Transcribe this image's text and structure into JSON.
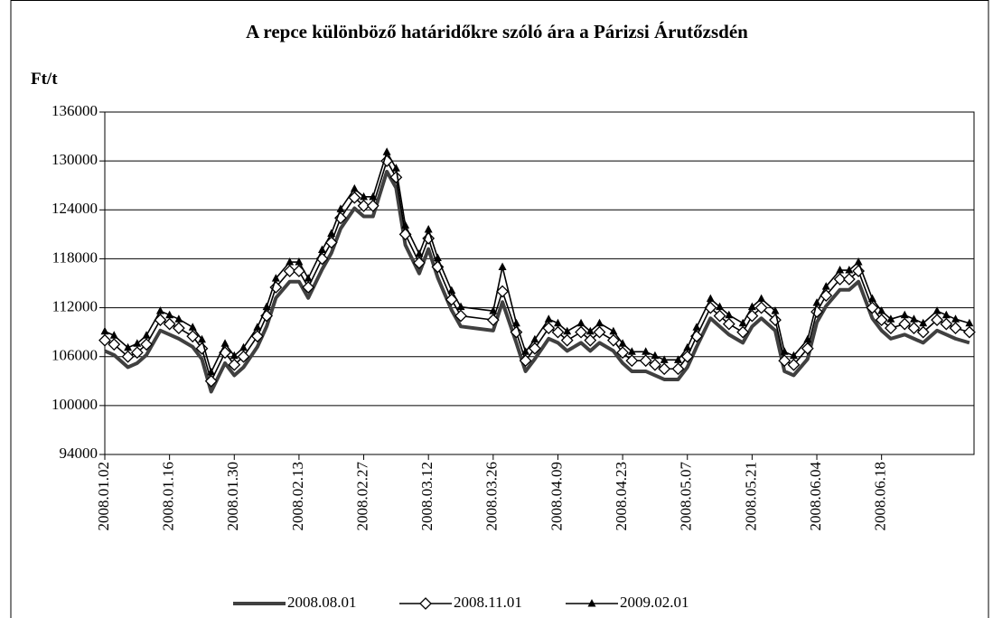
{
  "chart_data": {
    "type": "line",
    "title": "A repce különböző határidőkre szóló ára a Párizsi Árutőzsdén",
    "y_label": "Ft/t",
    "x": [
      "2008.01.02",
      "2008.01.04",
      "2008.01.07",
      "2008.01.09",
      "2008.01.11",
      "2008.01.14",
      "2008.01.16",
      "2008.01.18",
      "2008.01.21",
      "2008.01.23",
      "2008.01.25",
      "2008.01.28",
      "2008.01.30",
      "2008.02.01",
      "2008.02.04",
      "2008.02.06",
      "2008.02.08",
      "2008.02.11",
      "2008.02.13",
      "2008.02.15",
      "2008.02.18",
      "2008.02.20",
      "2008.02.22",
      "2008.02.25",
      "2008.02.27",
      "2008.02.29",
      "2008.03.03",
      "2008.03.05",
      "2008.03.07",
      "2008.03.10",
      "2008.03.12",
      "2008.03.14",
      "2008.03.17",
      "2008.03.19",
      "2008.03.26",
      "2008.03.28",
      "2008.03.31",
      "2008.04.02",
      "2008.04.04",
      "2008.04.07",
      "2008.04.09",
      "2008.04.11",
      "2008.04.14",
      "2008.04.16",
      "2008.04.18",
      "2008.04.21",
      "2008.04.23",
      "2008.04.25",
      "2008.04.28",
      "2008.04.30",
      "2008.05.02",
      "2008.05.05",
      "2008.05.07",
      "2008.05.09",
      "2008.05.12",
      "2008.05.14",
      "2008.05.16",
      "2008.05.19",
      "2008.05.21",
      "2008.05.23",
      "2008.05.26",
      "2008.05.28",
      "2008.05.30",
      "2008.06.02",
      "2008.06.04",
      "2008.06.06",
      "2008.06.09",
      "2008.06.11",
      "2008.06.13",
      "2008.06.16",
      "2008.06.18",
      "2008.06.20",
      "2008.06.23",
      "2008.06.25",
      "2008.06.27",
      "2008.06.30",
      "2008.07.02",
      "2008.07.04",
      "2008.07.07"
    ],
    "series": [
      {
        "name": "2008.08.01",
        "color": "#404040",
        "marker": "none",
        "values": [
          106700,
          106200,
          104700,
          105200,
          106200,
          109200,
          108700,
          108200,
          107200,
          105700,
          101700,
          105200,
          103700,
          104700,
          107200,
          109700,
          113200,
          115200,
          115200,
          113200,
          116700,
          118700,
          121700,
          124200,
          123200,
          123200,
          128700,
          126700,
          119700,
          116200,
          119200,
          115700,
          111700,
          109700,
          109200,
          112700,
          107700,
          104200,
          105700,
          108200,
          107700,
          106700,
          107700,
          106700,
          107700,
          106700,
          105200,
          104200,
          104200,
          103700,
          103200,
          103200,
          104700,
          107200,
          110700,
          109700,
          108700,
          107700,
          109700,
          110700,
          109200,
          104200,
          103700,
          105700,
          110200,
          112200,
          114200,
          114200,
          115200,
          110700,
          109200,
          108200,
          108700,
          108200,
          107700,
          109200,
          108700,
          108200,
          107700
        ]
      },
      {
        "name": "2008.11.01",
        "color": "#000000",
        "marker": "diamond",
        "values": [
          108000,
          107500,
          106000,
          106500,
          107500,
          110500,
          110000,
          109500,
          108500,
          107000,
          103000,
          106500,
          105000,
          106000,
          108500,
          111000,
          114500,
          116500,
          116500,
          114500,
          118000,
          120000,
          123000,
          125500,
          124500,
          124500,
          130000,
          128000,
          121000,
          117500,
          120500,
          117000,
          113000,
          111000,
          110500,
          114000,
          109000,
          105500,
          107000,
          109500,
          109000,
          108000,
          109000,
          108000,
          109000,
          108000,
          106500,
          105500,
          105500,
          105000,
          104500,
          104500,
          106000,
          108500,
          112000,
          111000,
          110000,
          109000,
          111000,
          112000,
          110500,
          105500,
          105000,
          107000,
          111500,
          113500,
          115500,
          115500,
          116500,
          112000,
          110500,
          109500,
          110000,
          109500,
          109000,
          110500,
          110000,
          109500,
          109000
        ]
      },
      {
        "name": "2009.02.01",
        "color": "#000000",
        "marker": "triangle",
        "values": [
          109100,
          108600,
          107100,
          107600,
          108600,
          111600,
          111100,
          110600,
          109600,
          108100,
          104100,
          107600,
          106100,
          107100,
          109600,
          112100,
          115600,
          117600,
          117600,
          115600,
          119100,
          121100,
          124100,
          126600,
          125600,
          125600,
          131100,
          129100,
          122100,
          118600,
          121600,
          118100,
          114100,
          112100,
          111600,
          117000,
          110100,
          106600,
          108100,
          110600,
          110100,
          109100,
          110100,
          109100,
          110100,
          109100,
          107600,
          106600,
          106600,
          106100,
          105600,
          105600,
          107100,
          109600,
          113100,
          112100,
          111100,
          110100,
          112100,
          113100,
          111600,
          106600,
          106100,
          108100,
          112600,
          114600,
          116600,
          116600,
          117600,
          113100,
          111600,
          110600,
          111100,
          110600,
          110100,
          111600,
          111100,
          110600,
          110100
        ]
      }
    ],
    "xlim": [
      "2008.01.02",
      "2008.07.08"
    ],
    "xticks": [
      "2008.01.02",
      "2008.01.16",
      "2008.01.30",
      "2008.02.13",
      "2008.02.27",
      "2008.03.12",
      "2008.03.26",
      "2008.04.09",
      "2008.04.23",
      "2008.05.07",
      "2008.05.21",
      "2008.06.04",
      "2008.06.18"
    ],
    "ylim": [
      94000,
      136000
    ],
    "yticks": [
      94000,
      100000,
      106000,
      112000,
      118000,
      124000,
      130000,
      136000
    ],
    "grid": true,
    "legend": "bottom"
  }
}
